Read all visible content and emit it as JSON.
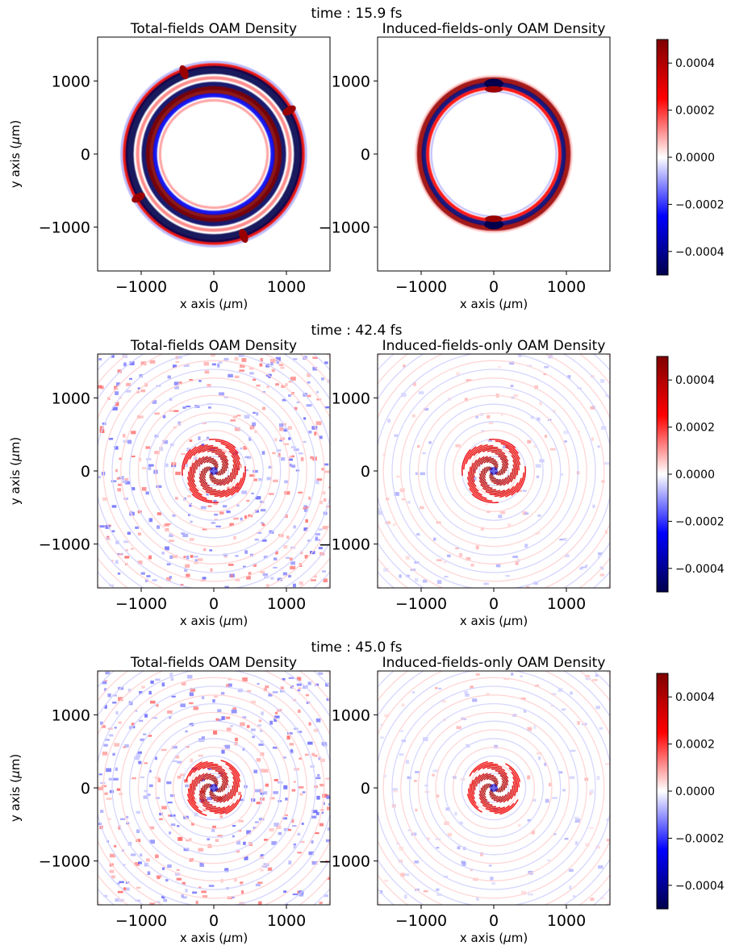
{
  "chart_data": [
    {
      "type": "heatmap",
      "title": "time : 15.9 fs",
      "panels": [
        {
          "title": "Total-fields OAM Density",
          "pattern": "double-ring",
          "ring_radii_um": [
            900,
            1200
          ],
          "lobes_at_deg": [
            30,
            110,
            210,
            290
          ]
        },
        {
          "title": "Induced-fields-only OAM Density",
          "pattern": "single-ring",
          "ring_radius_um": 980,
          "dark_spots_at_deg": [
            90,
            270
          ]
        }
      ],
      "xlabel": "x axis ($\\mu$m)",
      "ylabel": "y axis ($\\mu$m)",
      "xlim": [
        -1600,
        1600
      ],
      "ylim": [
        -1600,
        1600
      ],
      "xticks": [
        -1000,
        0,
        1000
      ],
      "yticks": [
        1000,
        0,
        -1000
      ],
      "xtick_labels": [
        "−1000",
        "0",
        "1000"
      ],
      "ytick_labels": [
        "1000",
        "0",
        "−1000"
      ],
      "colorbar": {
        "vmin": -0.0005,
        "vmax": 0.0005,
        "ticks": [
          0.0004,
          0.0002,
          0.0,
          -0.0002,
          -0.0004
        ],
        "tick_labels": [
          "0.0004",
          "0.0002",
          "0.0000",
          "−0.0002",
          "−0.0004"
        ],
        "colormap": "seismic"
      }
    },
    {
      "type": "heatmap",
      "title": "time : 42.4 fs",
      "panels": [
        {
          "title": "Total-fields OAM Density",
          "pattern": "central-spiral-with-background-speckle",
          "core_radius_um": 450
        },
        {
          "title": "Induced-fields-only OAM Density",
          "pattern": "central-spiral-with-faint-rings",
          "core_radius_um": 450
        }
      ],
      "xlabel": "x axis ($\\mu$m)",
      "ylabel": "y axis ($\\mu$m)",
      "xlim": [
        -1600,
        1600
      ],
      "ylim": [
        -1600,
        1600
      ],
      "xticks": [
        -1000,
        0,
        1000
      ],
      "yticks": [
        1000,
        0,
        -1000
      ],
      "xtick_labels": [
        "−1000",
        "0",
        "1000"
      ],
      "ytick_labels": [
        "1000",
        "0",
        "−1000"
      ],
      "colorbar": {
        "vmin": -0.0005,
        "vmax": 0.0005,
        "ticks": [
          0.0004,
          0.0002,
          0.0,
          -0.0002,
          -0.0004
        ],
        "tick_labels": [
          "0.0004",
          "0.0002",
          "0.0000",
          "−0.0002",
          "−0.0004"
        ],
        "colormap": "seismic"
      }
    },
    {
      "type": "heatmap",
      "title": "time : 45.0 fs",
      "panels": [
        {
          "title": "Total-fields OAM Density",
          "pattern": "central-spiral-with-background-speckle",
          "core_radius_um": 400
        },
        {
          "title": "Induced-fields-only OAM Density",
          "pattern": "central-spiral-with-faint-rings",
          "core_radius_um": 380
        }
      ],
      "xlabel": "x axis ($\\mu$m)",
      "ylabel": "y axis ($\\mu$m)",
      "xlim": [
        -1600,
        1600
      ],
      "ylim": [
        -1600,
        1600
      ],
      "xticks": [
        -1000,
        0,
        1000
      ],
      "yticks": [
        1000,
        0,
        -1000
      ],
      "xtick_labels": [
        "−1000",
        "0",
        "1000"
      ],
      "ytick_labels": [
        "1000",
        "0",
        "−1000"
      ],
      "colorbar": {
        "vmin": -0.0005,
        "vmax": 0.0005,
        "ticks": [
          0.0004,
          0.0002,
          0.0,
          -0.0002,
          -0.0004
        ],
        "tick_labels": [
          "0.0004",
          "0.0002",
          "0.0000",
          "−0.0002",
          "−0.0004"
        ],
        "colormap": "seismic"
      }
    }
  ],
  "labels": {
    "xlabel_prefix": "x axis (",
    "ylabel_prefix": "y axis (",
    "unit_mu": "μ",
    "unit_rest": "m)"
  },
  "colors": {
    "cmap_low": "#00004c",
    "cmap_blue": "#0000ff",
    "cmap_mid": "#ffffff",
    "cmap_red": "#ff0000",
    "cmap_high": "#7f0000"
  }
}
